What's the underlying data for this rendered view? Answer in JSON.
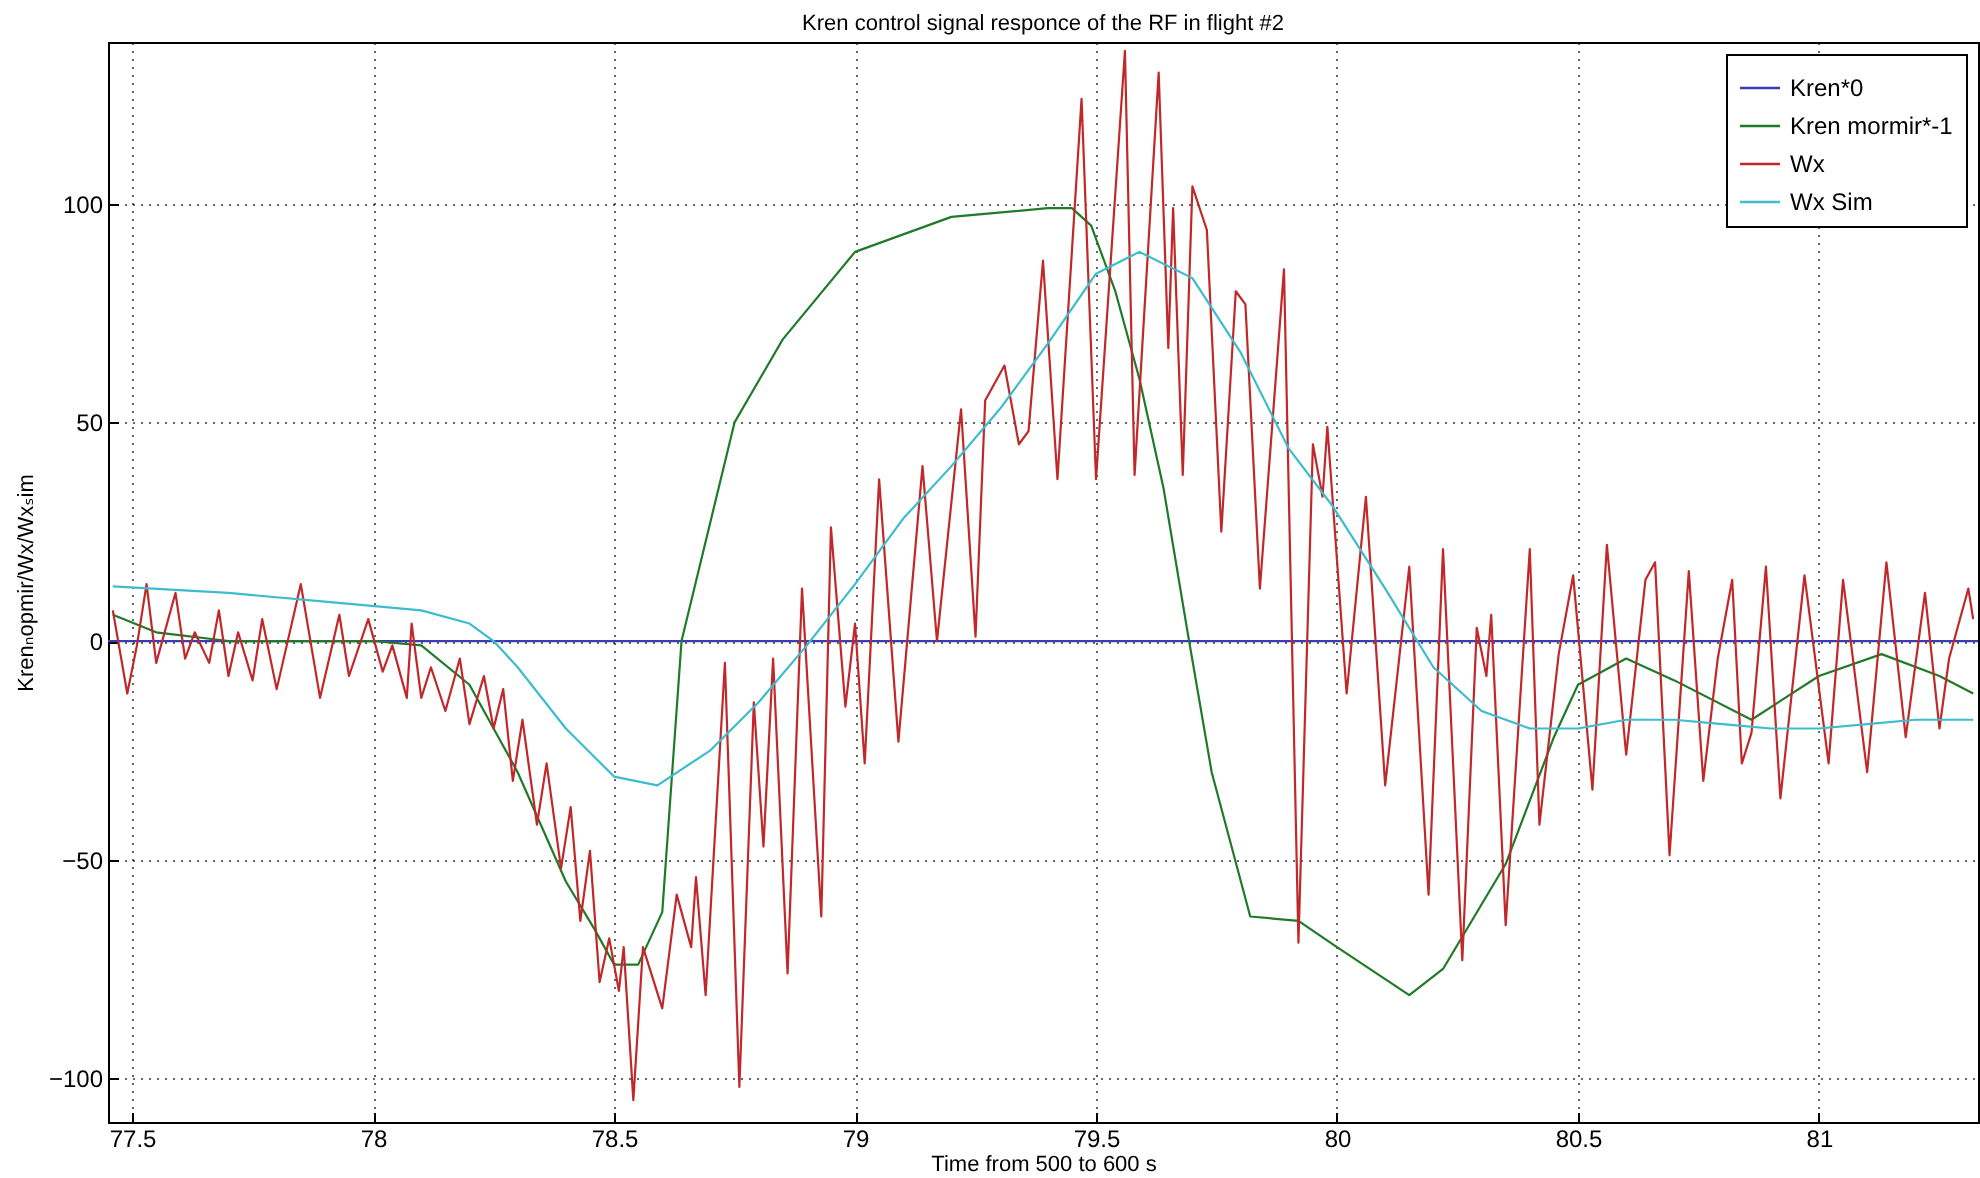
{
  "chart_data": {
    "type": "line",
    "title": "Kren control signal responce of the RF in flight #2",
    "xlabel": "Time from 500 to 600  s",
    "ylabel": "Krenₙopmir/Wx/Wxₛim",
    "xlim": [
      77.45,
      81.33
    ],
    "xticks": [
      77.5,
      78,
      78.5,
      79,
      79.5,
      80,
      80.5,
      81
    ],
    "ylim": [
      -110,
      137
    ],
    "yticks": [
      -100,
      -50,
      0,
      50,
      100
    ],
    "grid": true,
    "legend": "top right",
    "line_style": "solid",
    "series": [
      {
        "name": "Kren*0",
        "color": "#3c3cb4",
        "x": [
          77.45,
          81.33
        ],
        "values": [
          0,
          0
        ]
      },
      {
        "name": "Kren mormir*-1",
        "color": "#1f7a2a",
        "x": [
          77.46,
          77.55,
          77.7,
          78.0,
          78.1,
          78.2,
          78.3,
          78.4,
          78.46,
          78.5,
          78.55,
          78.6,
          78.64,
          78.75,
          78.85,
          79.0,
          79.2,
          79.4,
          79.45,
          79.49,
          79.54,
          79.59,
          79.64,
          79.69,
          79.74,
          79.82,
          79.92,
          80.0,
          80.15,
          80.22,
          80.35,
          80.45,
          80.5,
          80.6,
          80.7,
          80.86,
          81.0,
          81.13,
          81.25,
          81.32
        ],
        "values": [
          6,
          2,
          0,
          0,
          -1,
          -10,
          -30,
          -55,
          -66,
          -74,
          -74,
          -62,
          0,
          50,
          69,
          89,
          97,
          99,
          99,
          95,
          80,
          60,
          35,
          2,
          -30,
          -63,
          -64,
          -70,
          -81,
          -75,
          -51,
          -22,
          -10,
          -4,
          -9,
          -18,
          -8,
          -3,
          -8,
          -12
        ]
      },
      {
        "name": "Wx",
        "color": "#c0282a",
        "x": [
          77.46,
          77.49,
          77.51,
          77.53,
          77.55,
          77.59,
          77.61,
          77.63,
          77.66,
          77.68,
          77.7,
          77.72,
          77.75,
          77.77,
          77.8,
          77.85,
          77.89,
          77.93,
          77.95,
          77.99,
          78.02,
          78.04,
          78.07,
          78.08,
          78.1,
          78.12,
          78.15,
          78.18,
          78.2,
          78.23,
          78.25,
          78.27,
          78.29,
          78.31,
          78.34,
          78.36,
          78.39,
          78.41,
          78.43,
          78.45,
          78.47,
          78.49,
          78.51,
          78.52,
          78.54,
          78.56,
          78.6,
          78.63,
          78.66,
          78.67,
          78.69,
          78.73,
          78.76,
          78.79,
          78.81,
          78.83,
          78.86,
          78.89,
          78.93,
          78.95,
          78.98,
          79.0,
          79.02,
          79.05,
          79.09,
          79.14,
          79.17,
          79.22,
          79.25,
          79.27,
          79.31,
          79.34,
          79.36,
          79.39,
          79.42,
          79.47,
          79.5,
          79.56,
          79.58,
          79.63,
          79.65,
          79.66,
          79.68,
          79.7,
          79.73,
          79.76,
          79.79,
          79.81,
          79.84,
          79.89,
          79.92,
          79.95,
          79.97,
          79.98,
          80.02,
          80.06,
          80.1,
          80.15,
          80.19,
          80.22,
          80.26,
          80.29,
          80.31,
          80.32,
          80.35,
          80.4,
          80.42,
          80.46,
          80.49,
          80.53,
          80.56,
          80.6,
          80.64,
          80.66,
          80.69,
          80.73,
          80.76,
          80.79,
          80.82,
          80.84,
          80.86,
          80.89,
          80.92,
          80.97,
          81.02,
          81.05,
          81.1,
          81.14,
          81.18,
          81.22,
          81.25,
          81.27,
          81.31,
          81.32
        ],
        "values": [
          7,
          -12,
          -1,
          13,
          -5,
          11,
          -4,
          2,
          -5,
          7,
          -8,
          2,
          -9,
          5,
          -11,
          13,
          -13,
          6,
          -8,
          5,
          -7,
          -1,
          -13,
          4,
          -13,
          -6,
          -16,
          -4,
          -19,
          -8,
          -20,
          -11,
          -32,
          -18,
          -42,
          -28,
          -52,
          -38,
          -64,
          -48,
          -78,
          -68,
          -80,
          -70,
          -105,
          -70,
          -84,
          -58,
          -70,
          -54,
          -81,
          -5,
          -102,
          -14,
          -47,
          -4,
          -76,
          12,
          -63,
          26,
          -15,
          4,
          -28,
          37,
          -23,
          40,
          0,
          53,
          1,
          55,
          63,
          45,
          48,
          87,
          37,
          124,
          37,
          135,
          38,
          130,
          67,
          99,
          38,
          104,
          94,
          25,
          80,
          77,
          12,
          85,
          -69,
          45,
          33,
          49,
          -12,
          33,
          -33,
          17,
          -58,
          21,
          -73,
          3,
          -8,
          6,
          -65,
          21,
          -42,
          -3,
          15,
          -34,
          22,
          -26,
          14,
          18,
          -49,
          16,
          -32,
          -4,
          14,
          -28,
          -21,
          17,
          -36,
          15,
          -28,
          14,
          -30,
          18,
          -22,
          11,
          -20,
          -4,
          12,
          5
        ]
      },
      {
        "name": "Wx Sim",
        "color": "#3cbccc",
        "x": [
          77.46,
          77.7,
          77.9,
          78.1,
          78.2,
          78.25,
          78.3,
          78.4,
          78.5,
          78.59,
          78.7,
          78.8,
          78.9,
          79.0,
          79.1,
          79.2,
          79.3,
          79.4,
          79.5,
          79.59,
          79.7,
          79.8,
          79.9,
          79.99,
          80.1,
          80.2,
          80.3,
          80.4,
          80.5,
          80.6,
          80.7,
          80.8,
          80.9,
          81.0,
          81.1,
          81.2,
          81.32
        ],
        "values": [
          12.5,
          11,
          9,
          7,
          4,
          0,
          -6,
          -20,
          -31,
          -33,
          -25,
          -14,
          -1,
          13,
          28,
          40,
          53,
          68,
          84,
          89,
          83,
          66,
          44,
          31,
          12,
          -6,
          -16,
          -20,
          -20,
          -18,
          -18,
          -19,
          -20,
          -20,
          -19,
          -18,
          -18
        ]
      }
    ]
  }
}
